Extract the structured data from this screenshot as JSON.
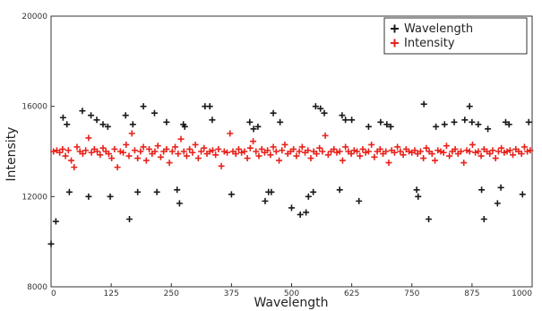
{
  "chart_data": {
    "type": "scatter",
    "title": "",
    "xlabel": "Wavelength",
    "ylabel": "Intensity",
    "xlim": [
      0,
      1000
    ],
    "ylim": [
      8000,
      20000
    ],
    "x_ticks": [
      0,
      125,
      250,
      375,
      500,
      625,
      750,
      875,
      1000
    ],
    "y_ticks": [
      8000,
      12000,
      16000,
      20000
    ],
    "grid": false,
    "legend_position": "top-right",
    "series": [
      {
        "name": "Wavelength",
        "color": "#1a1a1a",
        "marker": "plus",
        "points": [
          [
            0,
            9900
          ],
          [
            10,
            10900
          ],
          [
            25,
            15500
          ],
          [
            33,
            15200
          ],
          [
            38,
            12200
          ],
          [
            65,
            15800
          ],
          [
            78,
            12000
          ],
          [
            83,
            15600
          ],
          [
            95,
            15400
          ],
          [
            108,
            15200
          ],
          [
            118,
            15100
          ],
          [
            123,
            12000
          ],
          [
            155,
            15600
          ],
          [
            163,
            11000
          ],
          [
            170,
            15200
          ],
          [
            180,
            12200
          ],
          [
            192,
            16000
          ],
          [
            215,
            15700
          ],
          [
            220,
            12200
          ],
          [
            240,
            15300
          ],
          [
            262,
            12300
          ],
          [
            267,
            11700
          ],
          [
            275,
            15200
          ],
          [
            278,
            15100
          ],
          [
            320,
            16000
          ],
          [
            330,
            16000
          ],
          [
            335,
            15400
          ],
          [
            375,
            12100
          ],
          [
            413,
            15300
          ],
          [
            421,
            15000
          ],
          [
            430,
            15100
          ],
          [
            445,
            11800
          ],
          [
            452,
            12200
          ],
          [
            458,
            12200
          ],
          [
            462,
            15700
          ],
          [
            476,
            15300
          ],
          [
            500,
            11500
          ],
          [
            518,
            11200
          ],
          [
            530,
            11300
          ],
          [
            535,
            12000
          ],
          [
            545,
            12200
          ],
          [
            550,
            16000
          ],
          [
            560,
            15900
          ],
          [
            568,
            15700
          ],
          [
            600,
            12300
          ],
          [
            605,
            15600
          ],
          [
            612,
            15400
          ],
          [
            625,
            15400
          ],
          [
            640,
            11800
          ],
          [
            660,
            15100
          ],
          [
            685,
            15300
          ],
          [
            698,
            15200
          ],
          [
            706,
            15100
          ],
          [
            760,
            12300
          ],
          [
            763,
            12000
          ],
          [
            775,
            16100
          ],
          [
            785,
            11000
          ],
          [
            800,
            15100
          ],
          [
            818,
            15200
          ],
          [
            838,
            15300
          ],
          [
            860,
            15400
          ],
          [
            870,
            16000
          ],
          [
            875,
            15300
          ],
          [
            888,
            15200
          ],
          [
            895,
            12300
          ],
          [
            900,
            11000
          ],
          [
            908,
            15000
          ],
          [
            928,
            11700
          ],
          [
            935,
            12400
          ],
          [
            945,
            15300
          ],
          [
            952,
            15200
          ],
          [
            980,
            12100
          ],
          [
            993,
            15300
          ]
        ]
      },
      {
        "name": "Intensity",
        "color": "#e8221b",
        "marker": "plus",
        "points": [
          [
            5,
            14000
          ],
          [
            12,
            14050
          ],
          [
            18,
            13950
          ],
          [
            24,
            14100
          ],
          [
            30,
            13800
          ],
          [
            36,
            14050
          ],
          [
            42,
            13600
          ],
          [
            48,
            13300
          ],
          [
            54,
            14200
          ],
          [
            60,
            14000
          ],
          [
            66,
            13900
          ],
          [
            72,
            14050
          ],
          [
            78,
            14600
          ],
          [
            84,
            13950
          ],
          [
            90,
            14100
          ],
          [
            96,
            14000
          ],
          [
            102,
            13850
          ],
          [
            108,
            14150
          ],
          [
            114,
            14000
          ],
          [
            120,
            13900
          ],
          [
            126,
            13700
          ],
          [
            132,
            14100
          ],
          [
            138,
            13300
          ],
          [
            144,
            14000
          ],
          [
            150,
            13950
          ],
          [
            156,
            14300
          ],
          [
            162,
            13800
          ],
          [
            168,
            14800
          ],
          [
            174,
            14050
          ],
          [
            180,
            13700
          ],
          [
            186,
            14000
          ],
          [
            192,
            14200
          ],
          [
            198,
            13600
          ],
          [
            204,
            14100
          ],
          [
            210,
            13900
          ],
          [
            216,
            14000
          ],
          [
            222,
            14250
          ],
          [
            228,
            13750
          ],
          [
            234,
            14000
          ],
          [
            240,
            14100
          ],
          [
            246,
            13500
          ],
          [
            252,
            14000
          ],
          [
            258,
            14200
          ],
          [
            264,
            13900
          ],
          [
            270,
            14550
          ],
          [
            276,
            14000
          ],
          [
            282,
            13800
          ],
          [
            288,
            14100
          ],
          [
            294,
            13950
          ],
          [
            300,
            14300
          ],
          [
            306,
            13700
          ],
          [
            312,
            14000
          ],
          [
            318,
            14150
          ],
          [
            324,
            13900
          ],
          [
            330,
            14000
          ],
          [
            336,
            14050
          ],
          [
            342,
            13850
          ],
          [
            348,
            14100
          ],
          [
            354,
            13350
          ],
          [
            360,
            14000
          ],
          [
            366,
            13950
          ],
          [
            372,
            14800
          ],
          [
            378,
            14000
          ],
          [
            384,
            13900
          ],
          [
            390,
            14100
          ],
          [
            396,
            13950
          ],
          [
            402,
            14000
          ],
          [
            408,
            13700
          ],
          [
            414,
            14150
          ],
          [
            420,
            14450
          ],
          [
            426,
            14000
          ],
          [
            432,
            13800
          ],
          [
            438,
            14100
          ],
          [
            444,
            13950
          ],
          [
            450,
            14050
          ],
          [
            456,
            13850
          ],
          [
            462,
            14200
          ],
          [
            468,
            14000
          ],
          [
            474,
            13600
          ],
          [
            480,
            14050
          ],
          [
            486,
            14300
          ],
          [
            492,
            13900
          ],
          [
            498,
            14000
          ],
          [
            504,
            14100
          ],
          [
            510,
            13800
          ],
          [
            516,
            14000
          ],
          [
            522,
            14200
          ],
          [
            528,
            13950
          ],
          [
            534,
            14050
          ],
          [
            540,
            13700
          ],
          [
            546,
            14000
          ],
          [
            552,
            13900
          ],
          [
            558,
            14150
          ],
          [
            564,
            14000
          ],
          [
            570,
            14700
          ],
          [
            576,
            13850
          ],
          [
            582,
            14000
          ],
          [
            588,
            14100
          ],
          [
            594,
            13950
          ],
          [
            600,
            14000
          ],
          [
            606,
            13600
          ],
          [
            612,
            14200
          ],
          [
            618,
            14000
          ],
          [
            624,
            13900
          ],
          [
            630,
            14050
          ],
          [
            636,
            14000
          ],
          [
            642,
            13800
          ],
          [
            648,
            14100
          ],
          [
            654,
            13950
          ],
          [
            660,
            14000
          ],
          [
            666,
            14300
          ],
          [
            672,
            13750
          ],
          [
            678,
            14000
          ],
          [
            684,
            14100
          ],
          [
            690,
            13900
          ],
          [
            696,
            14000
          ],
          [
            702,
            13500
          ],
          [
            708,
            14050
          ],
          [
            714,
            13950
          ],
          [
            720,
            14200
          ],
          [
            726,
            14000
          ],
          [
            732,
            13850
          ],
          [
            738,
            14100
          ],
          [
            744,
            14000
          ],
          [
            750,
            13950
          ],
          [
            756,
            14050
          ],
          [
            762,
            13900
          ],
          [
            768,
            14000
          ],
          [
            774,
            13700
          ],
          [
            780,
            14150
          ],
          [
            786,
            14000
          ],
          [
            792,
            13900
          ],
          [
            798,
            13600
          ],
          [
            804,
            14050
          ],
          [
            810,
            14000
          ],
          [
            816,
            13950
          ],
          [
            822,
            14250
          ],
          [
            828,
            13800
          ],
          [
            834,
            14000
          ],
          [
            840,
            14100
          ],
          [
            846,
            13900
          ],
          [
            852,
            14000
          ],
          [
            858,
            13500
          ],
          [
            864,
            14050
          ],
          [
            870,
            14000
          ],
          [
            876,
            14300
          ],
          [
            882,
            13950
          ],
          [
            888,
            14000
          ],
          [
            894,
            13800
          ],
          [
            900,
            14100
          ],
          [
            906,
            14000
          ],
          [
            912,
            13900
          ],
          [
            918,
            14050
          ],
          [
            924,
            13700
          ],
          [
            930,
            14000
          ],
          [
            936,
            14150
          ],
          [
            942,
            13950
          ],
          [
            948,
            14000
          ],
          [
            954,
            14050
          ],
          [
            960,
            13850
          ],
          [
            966,
            14100
          ],
          [
            972,
            14000
          ],
          [
            978,
            13900
          ],
          [
            984,
            14200
          ],
          [
            990,
            14000
          ],
          [
            996,
            14050
          ]
        ]
      }
    ]
  }
}
